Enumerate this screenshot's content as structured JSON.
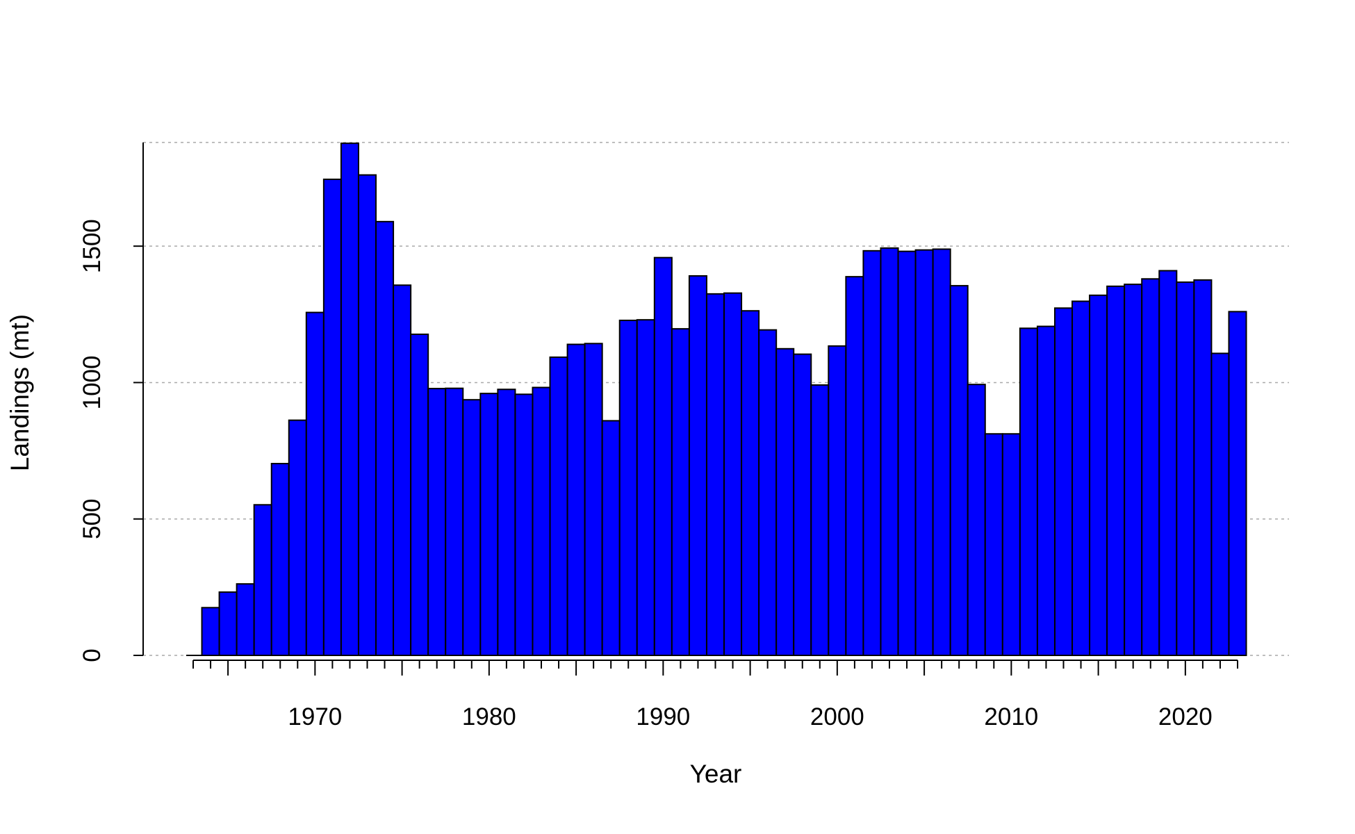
{
  "chart_data": {
    "type": "bar",
    "title": "",
    "xlabel": "Year",
    "ylabel": "Landings (mt)",
    "xlim": [
      1963,
      2026
    ],
    "ylim": [
      0,
      1880
    ],
    "ygrid": [
      0,
      500,
      1000,
      1500,
      1880
    ],
    "yticks": [
      0,
      500,
      1000,
      1500
    ],
    "ytick_labels": [
      "0",
      "500",
      "1000",
      "1500"
    ],
    "xticks": [
      1970,
      1980,
      1990,
      2000,
      2010,
      2020
    ],
    "xtick_labels": [
      "1970",
      "1980",
      "1990",
      "2000",
      "2010",
      "2020"
    ],
    "minor_tick_range": [
      1963,
      2023
    ],
    "categories": [
      1964,
      1965,
      1966,
      1967,
      1968,
      1969,
      1970,
      1971,
      1972,
      1973,
      1974,
      1975,
      1976,
      1977,
      1978,
      1979,
      1980,
      1981,
      1982,
      1983,
      1984,
      1985,
      1986,
      1987,
      1988,
      1989,
      1990,
      1991,
      1992,
      1993,
      1994,
      1995,
      1996,
      1997,
      1998,
      1999,
      2000,
      2001,
      2002,
      2003,
      2004,
      2005,
      2006,
      2007,
      2008,
      2009,
      2010,
      2011,
      2012,
      2013,
      2014,
      2015,
      2016,
      2017,
      2018,
      2019,
      2020,
      2021,
      2022,
      2023
    ],
    "values": [
      175,
      232,
      262,
      552,
      703,
      862,
      1257,
      1745,
      1877,
      1761,
      1590,
      1357,
      1177,
      978,
      979,
      937,
      960,
      975,
      957,
      982,
      1093,
      1140,
      1143,
      860,
      1228,
      1230,
      1458,
      1197,
      1391,
      1325,
      1328,
      1263,
      1193,
      1124,
      1104,
      991,
      1134,
      1388,
      1483,
      1493,
      1481,
      1486,
      1489,
      1355,
      993,
      812,
      812,
      1199,
      1206,
      1273,
      1298,
      1320,
      1353,
      1360,
      1380,
      1410,
      1368,
      1376,
      1107,
      1260
    ],
    "colors": {
      "bar_fill": "#0000FF",
      "bar_stroke": "#000000",
      "grid": "#A9A9A9",
      "axis": "#000000"
    }
  }
}
